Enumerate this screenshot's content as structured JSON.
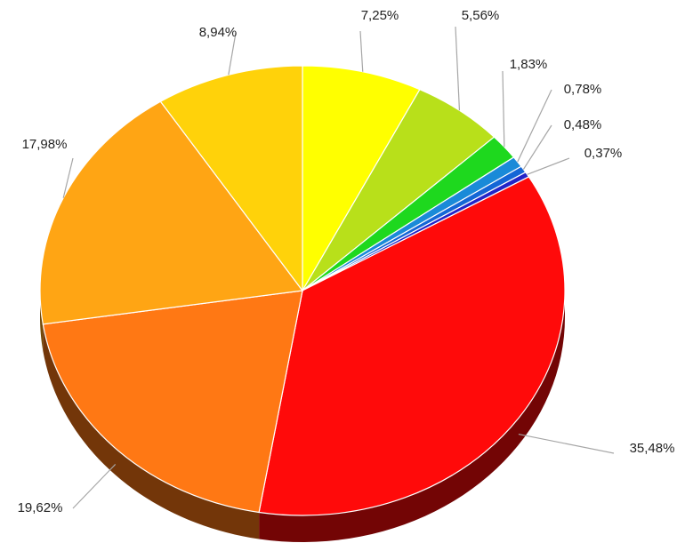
{
  "chart_data": {
    "type": "pie",
    "values": [
      7.25,
      5.56,
      1.83,
      0.78,
      0.48,
      0.37,
      35.48,
      19.62,
      17.98,
      8.94
    ],
    "value_labels": [
      "7,25%",
      "5,56%",
      "1,83%",
      "0,78%",
      "0,48%",
      "0,37%",
      "35,48%",
      "19,62%",
      "17,98%",
      "8,94%"
    ],
    "colors": [
      "#ffff00",
      "#b8e01a",
      "#1ed81e",
      "#1a8ad8",
      "#1466d6",
      "#2424c8",
      "#ff0a0a",
      "#ff7814",
      "#ffa514",
      "#ffd20a"
    ]
  }
}
